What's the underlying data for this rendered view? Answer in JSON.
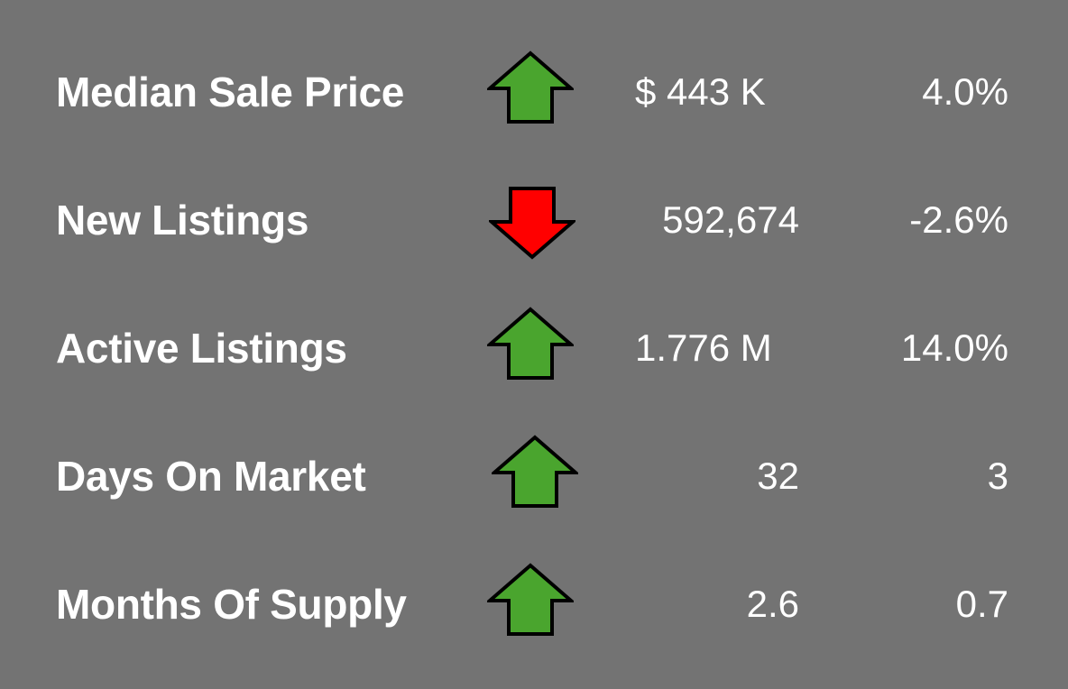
{
  "metrics": [
    {
      "label": "Median Sale Price",
      "trend": "up",
      "trend_icon": "up-arrow-icon",
      "value": "$ 443 K",
      "change": "4.0%"
    },
    {
      "label": "New Listings",
      "trend": "down",
      "trend_icon": "down-arrow-icon",
      "value": "592,674",
      "change": "-2.6%"
    },
    {
      "label": "Active Listings",
      "trend": "up",
      "trend_icon": "up-arrow-icon",
      "value": "1.776 M",
      "change": "14.0%"
    },
    {
      "label": "Days On Market",
      "trend": "up",
      "trend_icon": "up-arrow-icon",
      "value": "32",
      "change": "3"
    },
    {
      "label": "Months Of Supply",
      "trend": "up",
      "trend_icon": "up-arrow-icon",
      "value": "2.6",
      "change": "0.7"
    }
  ],
  "colors": {
    "background": "#737373",
    "text": "#ffffff",
    "up_arrow": "#4aa52e",
    "down_arrow": "#ff0000",
    "arrow_outline": "#000000"
  }
}
